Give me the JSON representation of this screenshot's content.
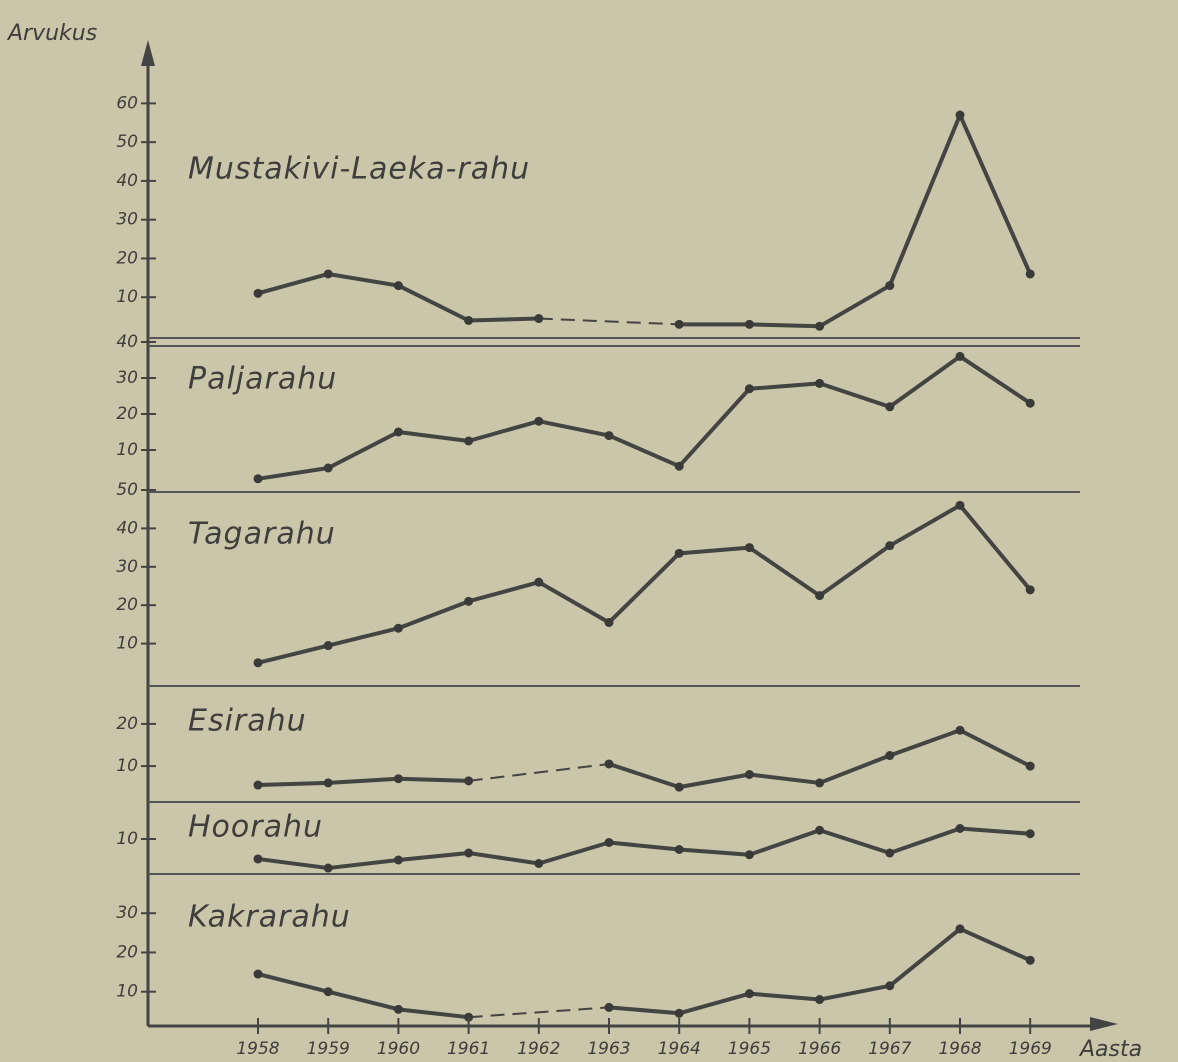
{
  "chart_data": [
    {
      "type": "line",
      "title": "Mustakivi-Laeka-rahu",
      "y_label": "Arvukus",
      "color": "#444442",
      "values": [
        11,
        16,
        13,
        4,
        4.5,
        null,
        3,
        3,
        2.5,
        13,
        57,
        16
      ],
      "ylim": [
        0,
        65
      ],
      "yticks": [
        10,
        20,
        30,
        40,
        50,
        60
      ]
    },
    {
      "type": "line",
      "title": "Paljarahu",
      "color": "#444442",
      "values": [
        2,
        5,
        15,
        12.5,
        18,
        14,
        5.5,
        27,
        28.5,
        22,
        36,
        23
      ],
      "ylim": [
        0,
        40
      ],
      "yticks": [
        10,
        20,
        30,
        40
      ]
    },
    {
      "type": "line",
      "title": "Tagarahu",
      "color": "#444442",
      "values": [
        5,
        9.5,
        14,
        21,
        26,
        15.5,
        33.5,
        35,
        22.5,
        35.5,
        46,
        24
      ],
      "ylim": [
        0,
        50
      ],
      "yticks": [
        10,
        20,
        30,
        40,
        50
      ]
    },
    {
      "type": "line",
      "title": "Esirahu",
      "color": "#444442",
      "values": [
        5.5,
        6,
        7,
        6.5,
        null,
        10.5,
        5,
        8,
        6,
        12.5,
        18.5,
        10
      ],
      "ylim": [
        1,
        29
      ],
      "yticks": [
        10,
        20
      ]
    },
    {
      "type": "line",
      "title": "Hoorahu",
      "color": "#444442",
      "values": [
        4.3,
        1.7,
        4,
        6,
        3,
        9,
        7,
        5.5,
        12.5,
        6,
        13,
        11.5
      ],
      "ylim": [
        0,
        20
      ],
      "yticks": [
        10
      ]
    },
    {
      "type": "line",
      "title": "Kakrarahu",
      "x_label": "Aasta",
      "color": "#444442",
      "categories": [
        "1958",
        "1959",
        "1960",
        "1961",
        "1962",
        "1963",
        "1964",
        "1965",
        "1966",
        "1967",
        "1968",
        "1969"
      ],
      "values": [
        14.5,
        10,
        5.5,
        3.5,
        null,
        6,
        4.5,
        9.5,
        8,
        11.5,
        26,
        18
      ],
      "ylim": [
        1,
        40
      ],
      "yticks": [
        10,
        20,
        30
      ]
    }
  ]
}
